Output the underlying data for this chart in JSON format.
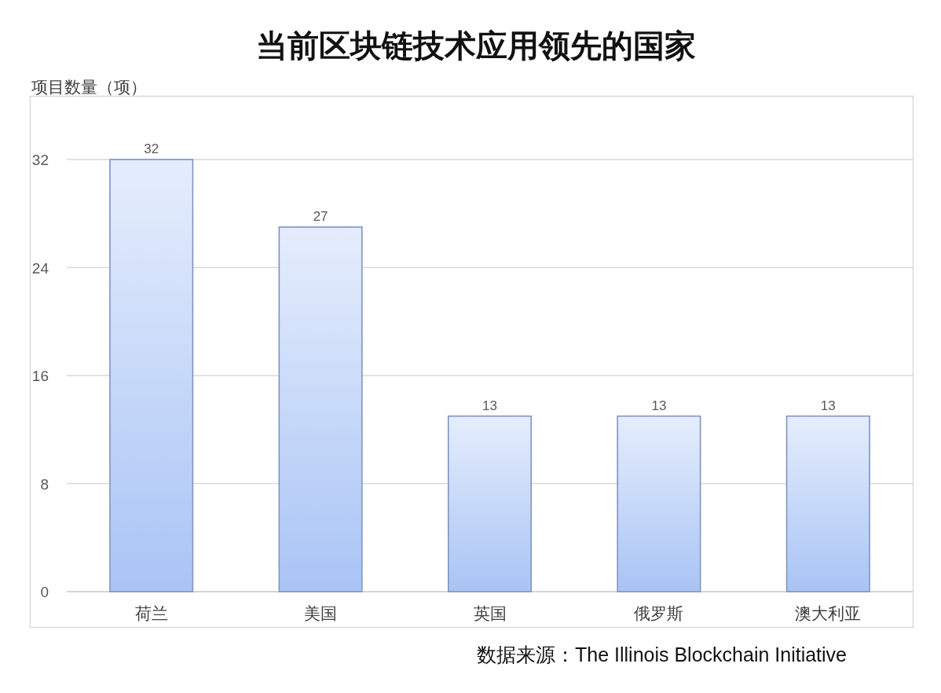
{
  "chart_data": {
    "type": "bar",
    "title": "当前区块链技术应用领先的国家",
    "ylabel": "项目数量（项）",
    "categories": [
      "荷兰",
      "美国",
      "英国",
      "俄罗斯",
      "澳大利亚"
    ],
    "values": [
      32,
      27,
      13,
      13,
      13
    ],
    "color": "#a9c4f5",
    "ylim": [
      0,
      32
    ],
    "yticks": [
      0,
      8,
      16,
      24,
      32
    ],
    "grid": "y",
    "data_labels": true,
    "annotations": [
      "数据来源：The Illinois Blockchain Initiative"
    ]
  }
}
